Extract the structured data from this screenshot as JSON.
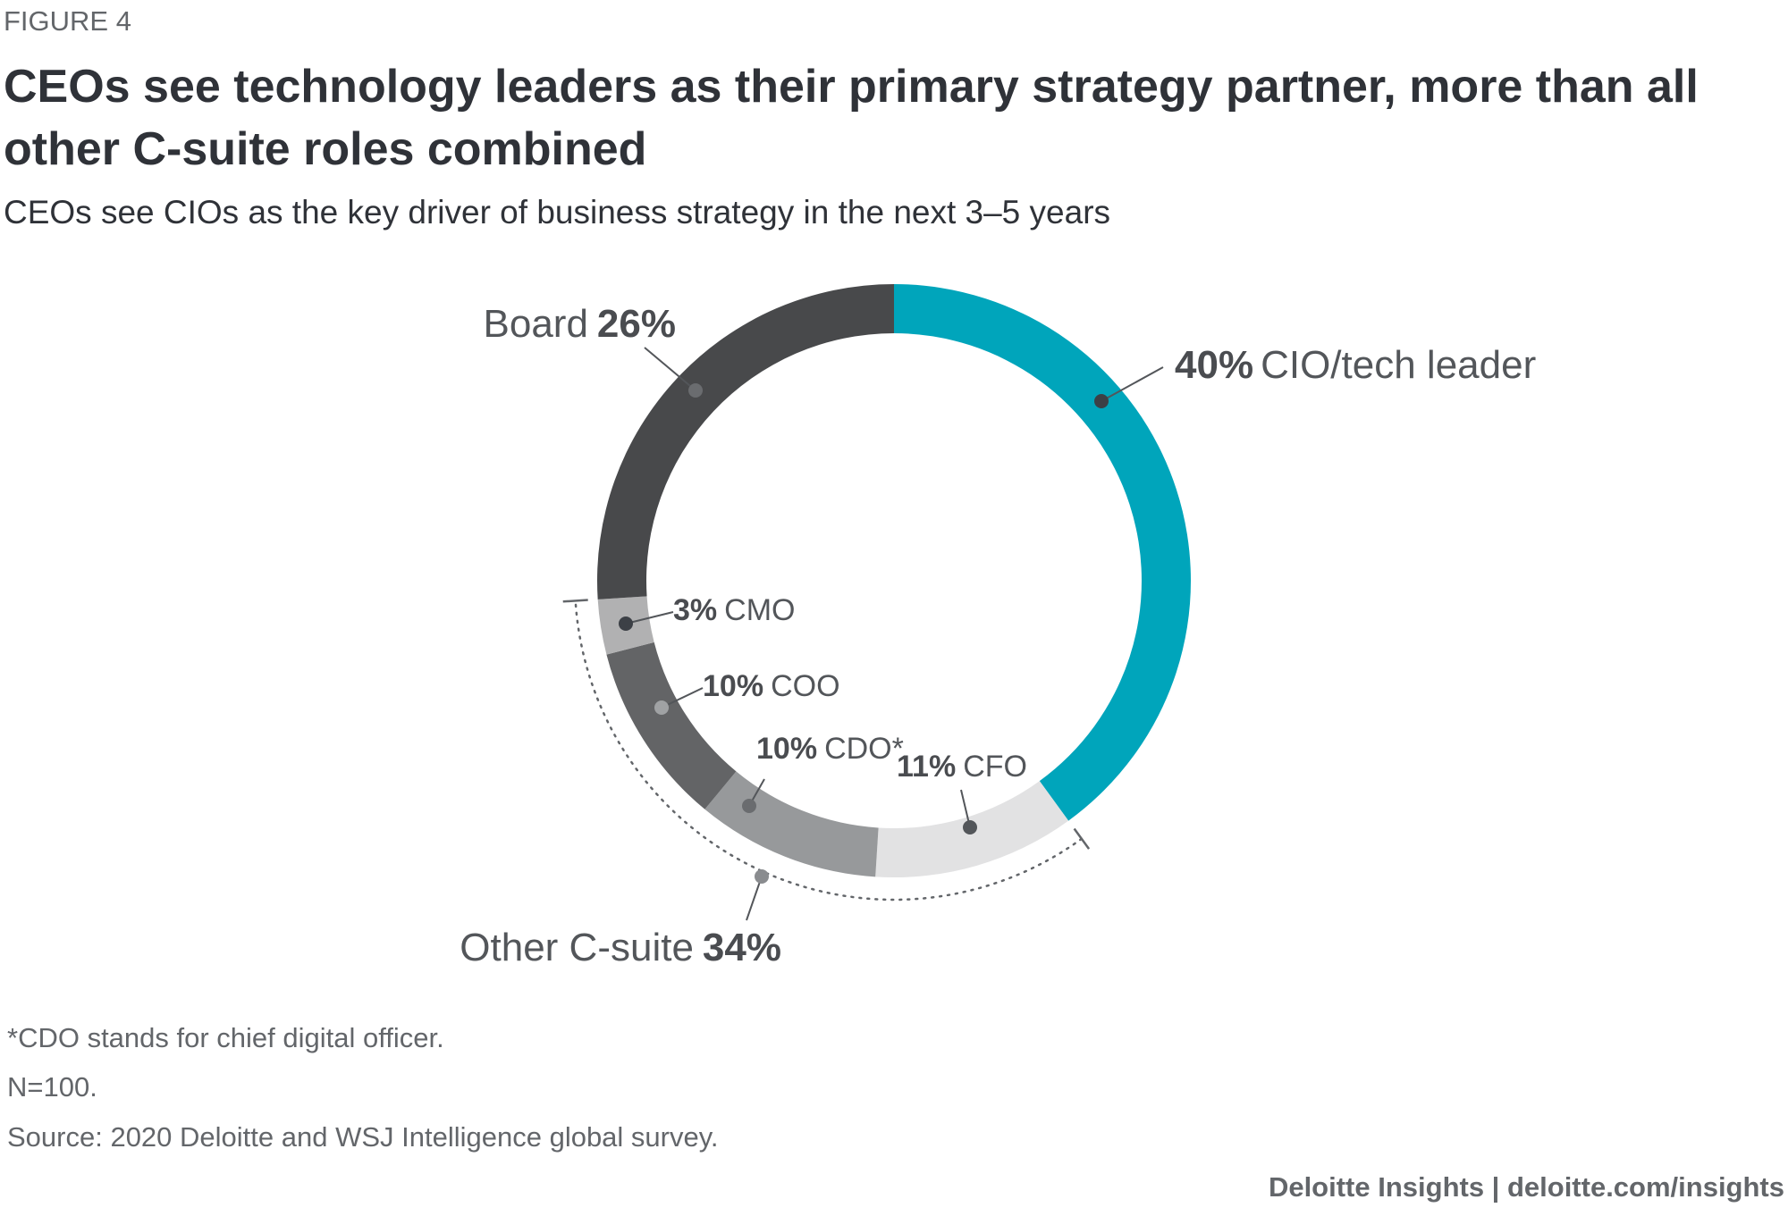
{
  "chart_data": {
    "type": "donut",
    "figure_label": "FIGURE 4",
    "title": [
      "CEOs see technology leaders as their primary strategy partner, more than all",
      "other C-suite roles combined"
    ],
    "subtitle": "CEOs see CIOs as the key driver of business strategy in the next 3–5 years",
    "categories": [
      "CIO/tech leader",
      "CFO",
      "CDO*",
      "COO",
      "CMO",
      "Board"
    ],
    "values": [
      40,
      11,
      10,
      10,
      3,
      26
    ],
    "value_labels": [
      "40%",
      "11%",
      "10%",
      "10%",
      "3%",
      "26%"
    ],
    "colors": [
      "#00a5bb",
      "#e2e2e3",
      "#97999b",
      "#636466",
      "#b1b1b2",
      "#48494b"
    ],
    "group_annotation": {
      "text": "Other C-suite",
      "value": 34,
      "label": "34%"
    },
    "notes": [
      "*CDO stands for chief digital officer.",
      "N=100.",
      "Source: 2020 Deloitte and WSJ Intelligence global survey."
    ],
    "source": "Deloitte Insights | deloitte.com/insights"
  }
}
